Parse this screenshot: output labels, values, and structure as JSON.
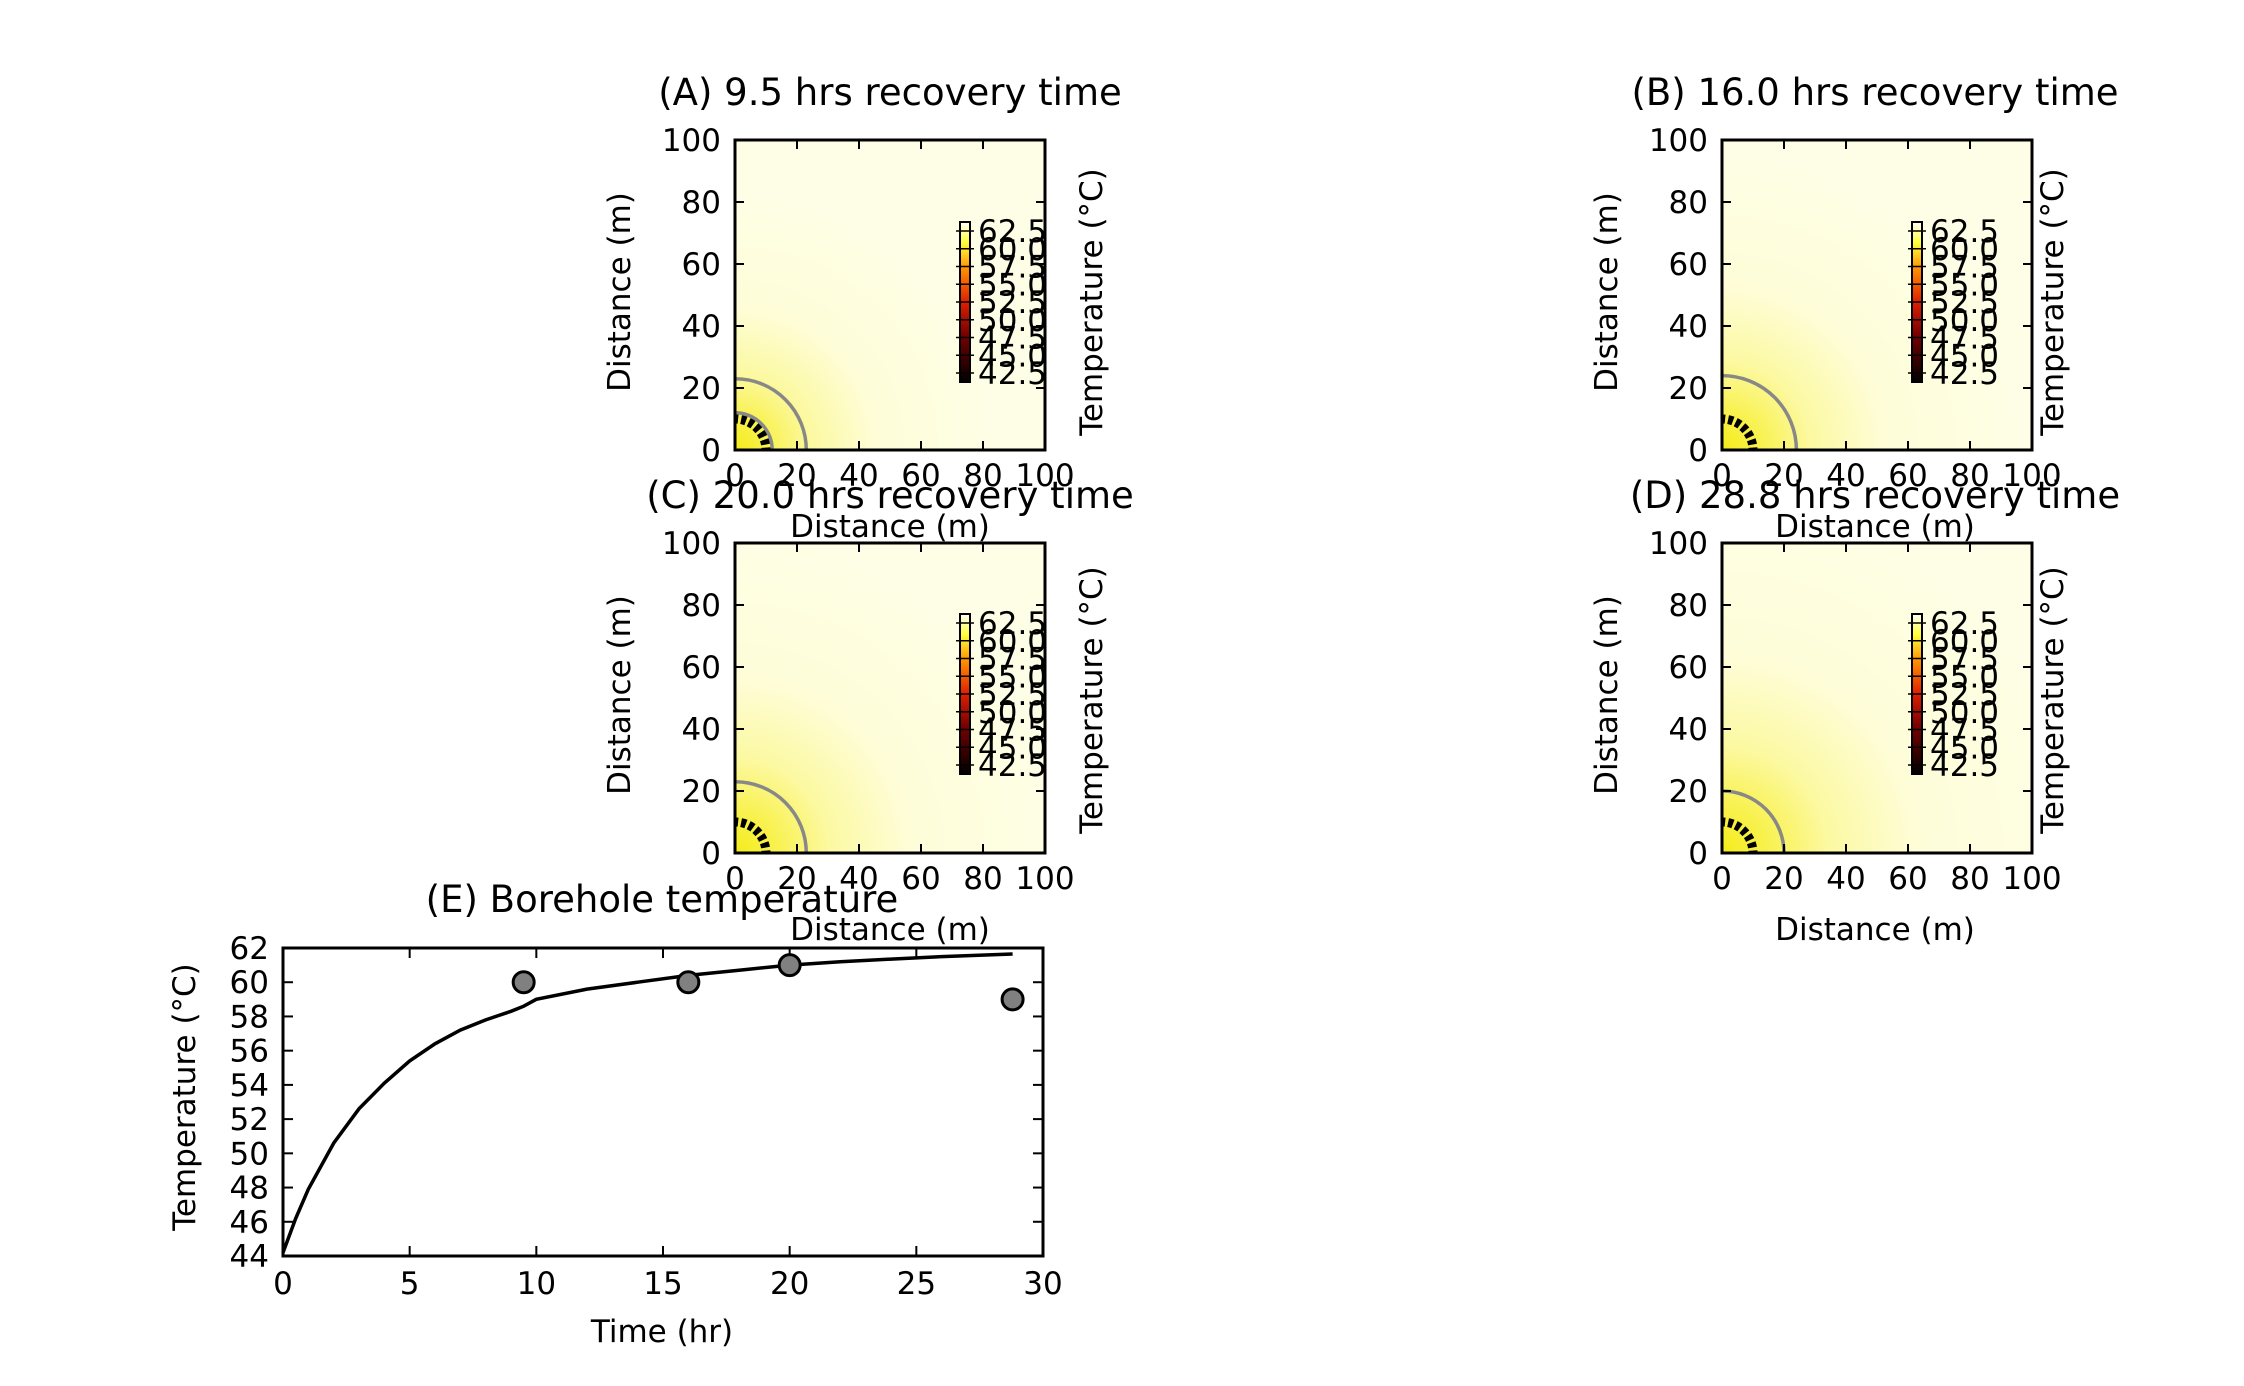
{
  "chart_data": [
    {
      "type": "heatmap",
      "panel": "A",
      "title": "(A) 9.5 hrs recovery time",
      "xlabel": "Distance (m)",
      "ylabel": "Distance (m)",
      "xlim": [
        0,
        100
      ],
      "ylim": [
        0,
        100
      ],
      "xticks": [
        "0",
        "20",
        "40",
        "60",
        "80",
        "100"
      ],
      "yticks": [
        "0",
        "20",
        "40",
        "60",
        "80",
        "100"
      ],
      "recovery_time_hr": 9.5,
      "contour_radii_m": [
        23,
        12
      ],
      "thick_contour_radius_m": 10,
      "hot_radius_m": 26,
      "colorbar": {
        "label": "Temperature (°C)",
        "ticks": [
          "62.5",
          "60.0",
          "57.5",
          "55.0",
          "52.5",
          "50.0",
          "47.5",
          "45.0",
          "42.5"
        ],
        "range": [
          42.5,
          62.5
        ]
      }
    },
    {
      "type": "heatmap",
      "panel": "B",
      "title": "(B) 16.0 hrs recovery time",
      "xlabel": "Distance (m)",
      "ylabel": "Distance (m)",
      "xlim": [
        0,
        100
      ],
      "ylim": [
        0,
        100
      ],
      "xticks": [
        "0",
        "20",
        "40",
        "60",
        "80",
        "100"
      ],
      "yticks": [
        "0",
        "20",
        "40",
        "60",
        "80",
        "100"
      ],
      "recovery_time_hr": 16.0,
      "contour_radii_m": [
        24
      ],
      "thick_contour_radius_m": 10,
      "hot_radius_m": 30,
      "colorbar": {
        "label": "Temperature (°C)",
        "ticks": [
          "62.5",
          "60.0",
          "57.5",
          "55.0",
          "52.5",
          "50.0",
          "47.5",
          "45.0",
          "42.5"
        ],
        "range": [
          42.5,
          62.5
        ]
      }
    },
    {
      "type": "heatmap",
      "panel": "C",
      "title": "(C) 20.0 hrs recovery time",
      "xlabel": "Distance (m)",
      "ylabel": "Distance (m)",
      "xlim": [
        0,
        100
      ],
      "ylim": [
        0,
        100
      ],
      "xticks": [
        "0",
        "20",
        "40",
        "60",
        "80",
        "100"
      ],
      "yticks": [
        "0",
        "20",
        "40",
        "60",
        "80",
        "100"
      ],
      "recovery_time_hr": 20.0,
      "contour_radii_m": [
        23
      ],
      "thick_contour_radius_m": 10,
      "hot_radius_m": 32,
      "colorbar": {
        "label": "Temperature (°C)",
        "ticks": [
          "62.5",
          "60.0",
          "57.5",
          "55.0",
          "52.5",
          "50.0",
          "47.5",
          "45.0",
          "42.5"
        ],
        "range": [
          42.5,
          62.5
        ]
      }
    },
    {
      "type": "heatmap",
      "panel": "D",
      "title": "(D) 28.8 hrs recovery time",
      "xlabel": "Distance (m)",
      "ylabel": "Distance (m)",
      "xlim": [
        0,
        100
      ],
      "ylim": [
        0,
        100
      ],
      "xticks": [
        "0",
        "20",
        "40",
        "60",
        "80",
        "100"
      ],
      "yticks": [
        "0",
        "20",
        "40",
        "60",
        "80",
        "100"
      ],
      "recovery_time_hr": 28.8,
      "contour_radii_m": [
        20
      ],
      "thick_contour_radius_m": 10,
      "hot_radius_m": 36,
      "colorbar": {
        "label": "Temperature (°C)",
        "ticks": [
          "62.5",
          "60.0",
          "57.5",
          "55.0",
          "52.5",
          "50.0",
          "47.5",
          "45.0",
          "42.5"
        ],
        "range": [
          42.5,
          62.5
        ]
      }
    },
    {
      "type": "line",
      "panel": "E",
      "title": "(E) Borehole temperature",
      "xlabel": "Time (hr)",
      "ylabel": "Temperature (°C)",
      "xlim": [
        0,
        30
      ],
      "ylim": [
        44,
        62
      ],
      "xticks": [
        "0",
        "5",
        "10",
        "15",
        "20",
        "25",
        "30"
      ],
      "yticks": [
        "44",
        "46",
        "48",
        "50",
        "52",
        "54",
        "56",
        "58",
        "60",
        "62"
      ],
      "series": [
        {
          "kind": "line",
          "x": [
            0,
            0.5,
            1,
            2,
            3,
            4,
            5,
            6,
            7,
            8,
            9,
            9.5,
            10,
            12,
            14,
            16,
            18,
            20,
            22,
            24,
            26,
            28.8
          ],
          "y": [
            44.2,
            46.2,
            47.9,
            50.6,
            52.6,
            54.1,
            55.4,
            56.4,
            57.2,
            57.8,
            58.3,
            58.6,
            59.0,
            59.6,
            60.0,
            60.4,
            60.7,
            61.0,
            61.2,
            61.35,
            61.5,
            61.65
          ]
        },
        {
          "kind": "scatter",
          "x": [
            9.5,
            16.0,
            20.0,
            28.8
          ],
          "y": [
            60.0,
            60.0,
            61.0,
            59.0
          ]
        }
      ]
    }
  ]
}
